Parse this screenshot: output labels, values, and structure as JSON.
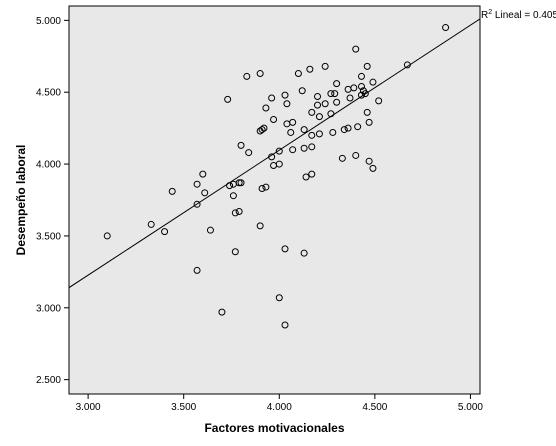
{
  "chart_data": {
    "type": "scatter",
    "xlabel": "Factores motivacionales",
    "ylabel": "Desempeño laboral",
    "xlim": [
      2.9,
      5.05
    ],
    "ylim": [
      2.4,
      5.1
    ],
    "x_ticks": [
      "3.000",
      "3.500",
      "4.000",
      "4.500",
      "5.000"
    ],
    "x_tick_values": [
      3.0,
      3.5,
      4.0,
      4.5,
      5.0
    ],
    "y_ticks": [
      "2.500",
      "3.000",
      "3.500",
      "4.000",
      "4.500",
      "5.000"
    ],
    "y_tick_values": [
      2.5,
      3.0,
      3.5,
      4.0,
      4.5,
      5.0
    ],
    "grid": false,
    "background": "#e8e8e8",
    "point_color": "#000000",
    "fit_line": {
      "x": [
        2.9,
        5.05
      ],
      "y": [
        3.14,
        5.01
      ]
    },
    "annotation": {
      "r2_prefix": "R",
      "r2_superscript": "2",
      "text": " Lineal = 0.405"
    },
    "points": [
      {
        "x": 3.1,
        "y": 3.5
      },
      {
        "x": 3.33,
        "y": 3.58
      },
      {
        "x": 3.4,
        "y": 3.53
      },
      {
        "x": 3.44,
        "y": 3.81
      },
      {
        "x": 3.57,
        "y": 3.86
      },
      {
        "x": 3.57,
        "y": 3.72
      },
      {
        "x": 3.6,
        "y": 3.93
      },
      {
        "x": 3.61,
        "y": 3.8
      },
      {
        "x": 3.64,
        "y": 3.54
      },
      {
        "x": 3.57,
        "y": 3.26
      },
      {
        "x": 3.7,
        "y": 2.97
      },
      {
        "x": 3.73,
        "y": 4.45
      },
      {
        "x": 3.74,
        "y": 3.85
      },
      {
        "x": 3.76,
        "y": 3.86
      },
      {
        "x": 3.76,
        "y": 3.78
      },
      {
        "x": 3.77,
        "y": 3.66
      },
      {
        "x": 3.79,
        "y": 3.67
      },
      {
        "x": 3.77,
        "y": 3.39
      },
      {
        "x": 3.8,
        "y": 4.13
      },
      {
        "x": 3.79,
        "y": 3.87
      },
      {
        "x": 3.8,
        "y": 3.87
      },
      {
        "x": 3.83,
        "y": 4.61
      },
      {
        "x": 3.84,
        "y": 4.08
      },
      {
        "x": 3.9,
        "y": 4.63
      },
      {
        "x": 3.9,
        "y": 4.23
      },
      {
        "x": 3.91,
        "y": 4.24
      },
      {
        "x": 3.92,
        "y": 4.25
      },
      {
        "x": 3.91,
        "y": 3.83
      },
      {
        "x": 3.93,
        "y": 3.84
      },
      {
        "x": 3.9,
        "y": 3.57
      },
      {
        "x": 3.93,
        "y": 4.39
      },
      {
        "x": 3.96,
        "y": 4.46
      },
      {
        "x": 3.97,
        "y": 4.31
      },
      {
        "x": 3.96,
        "y": 4.05
      },
      {
        "x": 3.97,
        "y": 3.99
      },
      {
        "x": 4.0,
        "y": 4.0
      },
      {
        "x": 4.0,
        "y": 4.09
      },
      {
        "x": 4.03,
        "y": 4.48
      },
      {
        "x": 4.04,
        "y": 4.42
      },
      {
        "x": 4.04,
        "y": 4.28
      },
      {
        "x": 4.06,
        "y": 4.22
      },
      {
        "x": 4.07,
        "y": 4.29
      },
      {
        "x": 4.07,
        "y": 4.1
      },
      {
        "x": 4.03,
        "y": 3.41
      },
      {
        "x": 4.0,
        "y": 3.07
      },
      {
        "x": 4.03,
        "y": 2.88
      },
      {
        "x": 4.1,
        "y": 4.63
      },
      {
        "x": 4.12,
        "y": 4.51
      },
      {
        "x": 4.13,
        "y": 4.24
      },
      {
        "x": 4.13,
        "y": 4.11
      },
      {
        "x": 4.14,
        "y": 3.91
      },
      {
        "x": 4.13,
        "y": 3.38
      },
      {
        "x": 4.16,
        "y": 4.66
      },
      {
        "x": 4.17,
        "y": 4.36
      },
      {
        "x": 4.17,
        "y": 4.2
      },
      {
        "x": 4.17,
        "y": 4.12
      },
      {
        "x": 4.17,
        "y": 3.93
      },
      {
        "x": 4.2,
        "y": 4.47
      },
      {
        "x": 4.2,
        "y": 4.41
      },
      {
        "x": 4.21,
        "y": 4.33
      },
      {
        "x": 4.21,
        "y": 4.21
      },
      {
        "x": 4.24,
        "y": 4.68
      },
      {
        "x": 4.24,
        "y": 4.42
      },
      {
        "x": 4.27,
        "y": 4.49
      },
      {
        "x": 4.27,
        "y": 4.35
      },
      {
        "x": 4.28,
        "y": 4.22
      },
      {
        "x": 4.29,
        "y": 4.49
      },
      {
        "x": 4.3,
        "y": 4.56
      },
      {
        "x": 4.3,
        "y": 4.43
      },
      {
        "x": 4.33,
        "y": 4.04
      },
      {
        "x": 4.34,
        "y": 4.24
      },
      {
        "x": 4.36,
        "y": 4.52
      },
      {
        "x": 4.36,
        "y": 4.25
      },
      {
        "x": 4.37,
        "y": 4.46
      },
      {
        "x": 4.39,
        "y": 4.53
      },
      {
        "x": 4.4,
        "y": 4.8
      },
      {
        "x": 4.4,
        "y": 4.06
      },
      {
        "x": 4.41,
        "y": 4.26
      },
      {
        "x": 4.43,
        "y": 4.61
      },
      {
        "x": 4.43,
        "y": 4.54
      },
      {
        "x": 4.43,
        "y": 4.48
      },
      {
        "x": 4.44,
        "y": 4.51
      },
      {
        "x": 4.45,
        "y": 4.49
      },
      {
        "x": 4.46,
        "y": 4.68
      },
      {
        "x": 4.46,
        "y": 4.36
      },
      {
        "x": 4.47,
        "y": 4.29
      },
      {
        "x": 4.47,
        "y": 4.02
      },
      {
        "x": 4.49,
        "y": 3.97
      },
      {
        "x": 4.49,
        "y": 4.57
      },
      {
        "x": 4.52,
        "y": 4.44
      },
      {
        "x": 4.67,
        "y": 4.69
      },
      {
        "x": 4.87,
        "y": 4.95
      }
    ]
  }
}
